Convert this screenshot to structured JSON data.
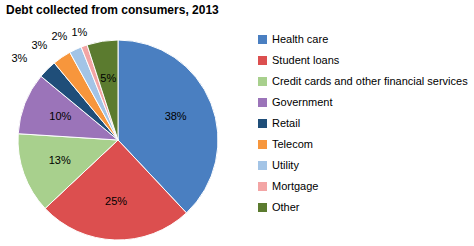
{
  "chart_data": {
    "type": "pie",
    "title": "Debt collected from consumers, 2013",
    "categories": [
      "Health care",
      "Student loans",
      "Credit cards and other financial services",
      "Government",
      "Retail",
      "Telecom",
      "Utility",
      "Mortgage",
      "Other"
    ],
    "values": [
      38,
      25,
      13,
      10,
      3,
      3,
      2,
      1,
      5
    ],
    "value_labels": [
      "38%",
      "25%",
      "13%",
      "10%",
      "3%",
      "3%",
      "2%",
      "1%",
      "5%"
    ],
    "colors": [
      "#4a7fc1",
      "#dc4f4f",
      "#a8d08d",
      "#9b74b9",
      "#1f4e79",
      "#f7963c",
      "#a3c4e6",
      "#f3a5a5",
      "#5b7b2f"
    ],
    "data_labels": true,
    "legend": "right"
  }
}
